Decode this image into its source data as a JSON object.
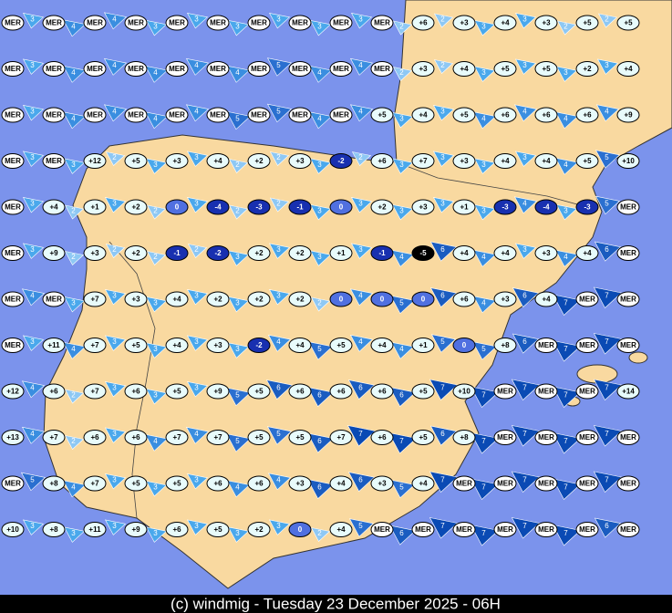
{
  "map": {
    "rows": [
      {
        "temperatures": [
          "MER",
          "MER",
          "MER",
          "MER",
          "MER",
          "MER",
          "MER",
          "MER",
          "MER",
          "MER",
          "+6",
          "+3",
          "+4",
          "+3",
          "+5",
          "+5"
        ],
        "winds": [
          3,
          4,
          4,
          3,
          3,
          3,
          3,
          3,
          3,
          2,
          2,
          3,
          3,
          2,
          2
        ]
      },
      {
        "temperatures": [
          "MER",
          "MER",
          "MER",
          "MER",
          "MER",
          "MER",
          "MER",
          "MER",
          "MER",
          "MER",
          "+3",
          "+4",
          "+5",
          "+5",
          "+2",
          "+4"
        ],
        "winds": [
          3,
          4,
          4,
          4,
          4,
          4,
          5,
          4,
          4,
          2,
          2,
          3,
          3,
          3,
          3
        ]
      },
      {
        "temperatures": [
          "MER",
          "MER",
          "MER",
          "MER",
          "MER",
          "MER",
          "MER",
          "MER",
          "MER",
          "+5",
          "+4",
          "+5",
          "+6",
          "+6",
          "+6",
          "+9"
        ],
        "winds": [
          3,
          4,
          4,
          4,
          4,
          5,
          5,
          4,
          4,
          3,
          3,
          4,
          4,
          4,
          4
        ]
      },
      {
        "temperatures": [
          "MER",
          "MER",
          "+12",
          "+5",
          "+3",
          "+4",
          "+2",
          "+3",
          "-2",
          "+6",
          "+7",
          "+3",
          "+4",
          "+4",
          "+5",
          "+10"
        ],
        "winds": [
          3,
          3,
          2,
          3,
          3,
          2,
          2,
          3,
          2,
          3,
          3,
          3,
          3,
          4,
          5
        ]
      },
      {
        "temperatures": [
          "MER",
          "+4",
          "+1",
          "+2",
          "0",
          "-4",
          "-3",
          "-1",
          "0",
          "+2",
          "+3",
          "+1",
          "-3",
          "-4",
          "-3",
          "MER"
        ],
        "winds": [
          3,
          2,
          3,
          2,
          3,
          2,
          2,
          3,
          3,
          3,
          3,
          3,
          4,
          3,
          5
        ]
      },
      {
        "temperatures": [
          "MER",
          "+9",
          "+3",
          "+2",
          "-1",
          "-2",
          "+2",
          "+2",
          "+1",
          "-1",
          "-5",
          "+4",
          "+4",
          "+3",
          "+4",
          "MER"
        ],
        "winds": [
          3,
          2,
          2,
          2,
          2,
          3,
          3,
          3,
          3,
          4,
          6,
          4,
          3,
          4,
          6
        ]
      },
      {
        "temperatures": [
          "MER",
          "MER",
          "+7",
          "+3",
          "+4",
          "+2",
          "+2",
          "+2",
          "0",
          "0",
          "0",
          "+6",
          "+3",
          "+4",
          "MER",
          "MER"
        ],
        "winds": [
          4,
          3,
          3,
          3,
          3,
          3,
          3,
          2,
          4,
          5,
          6,
          4,
          6,
          7,
          7
        ]
      },
      {
        "temperatures": [
          "MER",
          "+11",
          "+7",
          "+5",
          "+4",
          "+3",
          "-2",
          "+4",
          "+5",
          "+4",
          "+1",
          "0",
          "+8",
          "MER",
          "MER",
          "MER"
        ],
        "winds": [
          3,
          4,
          3,
          3,
          3,
          3,
          4,
          5,
          4,
          4,
          5,
          5,
          6,
          7,
          7
        ]
      },
      {
        "temperatures": [
          "+12",
          "+6",
          "+7",
          "+6",
          "+5",
          "+9",
          "+5",
          "+6",
          "+6",
          "+6",
          "+5",
          "+10",
          "MER",
          "MER",
          "MER",
          "+14"
        ],
        "winds": [
          4,
          2,
          3,
          3,
          3,
          5,
          6,
          6,
          6,
          6,
          7,
          7,
          7,
          7,
          7
        ]
      },
      {
        "temperatures": [
          "+13",
          "+7",
          "+6",
          "+6",
          "+7",
          "+7",
          "+5",
          "+5",
          "+7",
          "+6",
          "+5",
          "+8",
          "MER",
          "MER",
          "MER",
          "MER"
        ],
        "winds": [
          4,
          2,
          3,
          4,
          4,
          5,
          5,
          6,
          7,
          7,
          6,
          7,
          7,
          7,
          7
        ]
      },
      {
        "temperatures": [
          "MER",
          "+8",
          "+7",
          "+5",
          "+5",
          "+6",
          "+6",
          "+3",
          "+4",
          "+3",
          "+4",
          "MER",
          "MER",
          "MER",
          "MER",
          "MER"
        ],
        "winds": [
          5,
          4,
          3,
          3,
          3,
          4,
          4,
          6,
          6,
          5,
          7,
          7,
          7,
          7,
          7
        ]
      },
      {
        "temperatures": [
          "+10",
          "+8",
          "+11",
          "+9",
          "+6",
          "+5",
          "+2",
          "0",
          "+4",
          "MER",
          "MER",
          "MER",
          "MER",
          "MER",
          "MER",
          "MER"
        ],
        "winds": [
          3,
          3,
          3,
          3,
          3,
          3,
          3,
          2,
          5,
          6,
          7,
          7,
          7,
          7,
          6
        ]
      }
    ]
  },
  "footer": "(c) windmig - Tuesday 23 December 2025 - 06H"
}
